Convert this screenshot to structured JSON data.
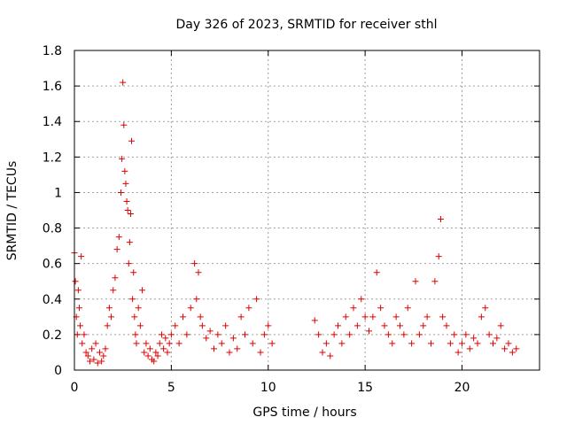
{
  "chart_data": {
    "type": "scatter",
    "title": "Day 326 of 2023, SRMTID for receiver sthl",
    "xlabel": "GPS time / hours",
    "ylabel": "SRMTID / TECUs",
    "xlim": [
      0,
      24
    ],
    "ylim": [
      0,
      1.8
    ],
    "xticks": [
      0,
      5,
      10,
      15,
      20
    ],
    "xtick_labels": [
      "0",
      "5",
      "10",
      "15",
      "20"
    ],
    "yticks": [
      0,
      0.2,
      0.4,
      0.6,
      0.8,
      1.0,
      1.2,
      1.4,
      1.6,
      1.8
    ],
    "ytick_labels": [
      "0",
      "0.2",
      "0.4",
      "0.6",
      "0.8",
      "1",
      "1.2",
      "1.4",
      "1.6",
      "1.8"
    ],
    "grid": true,
    "marker": "+",
    "color": "#e00000",
    "series": [
      {
        "name": "SRMTID",
        "x": [
          0.0,
          0.05,
          0.1,
          0.15,
          0.2,
          0.25,
          0.3,
          0.35,
          0.4,
          0.5,
          0.6,
          0.7,
          0.8,
          0.9,
          1.0,
          1.1,
          1.2,
          1.3,
          1.4,
          1.5,
          1.6,
          1.7,
          1.8,
          1.9,
          2.0,
          2.1,
          2.2,
          2.3,
          2.4,
          2.45,
          2.5,
          2.55,
          2.6,
          2.65,
          2.7,
          2.75,
          2.8,
          2.85,
          2.9,
          2.95,
          3.0,
          3.05,
          3.1,
          3.15,
          3.2,
          3.3,
          3.4,
          3.5,
          3.6,
          3.7,
          3.8,
          3.9,
          4.0,
          4.1,
          4.2,
          4.3,
          4.4,
          4.5,
          4.6,
          4.7,
          4.8,
          4.9,
          5.0,
          5.2,
          5.4,
          5.6,
          5.8,
          6.0,
          6.2,
          6.3,
          6.4,
          6.5,
          6.6,
          6.8,
          7.0,
          7.2,
          7.4,
          7.6,
          7.8,
          8.0,
          8.2,
          8.4,
          8.6,
          8.8,
          9.0,
          9.2,
          9.4,
          9.6,
          9.8,
          10.0,
          10.2,
          12.4,
          12.6,
          12.8,
          13.0,
          13.2,
          13.4,
          13.6,
          13.8,
          14.0,
          14.2,
          14.4,
          14.6,
          14.8,
          15.0,
          15.2,
          15.4,
          15.6,
          15.8,
          16.0,
          16.2,
          16.4,
          16.6,
          16.8,
          17.0,
          17.2,
          17.4,
          17.6,
          17.8,
          18.0,
          18.2,
          18.4,
          18.6,
          18.8,
          18.9,
          19.0,
          19.2,
          19.4,
          19.6,
          19.8,
          20.0,
          20.2,
          20.4,
          20.6,
          20.8,
          21.0,
          21.2,
          21.4,
          21.6,
          21.8,
          22.0,
          22.2,
          22.4,
          22.6,
          22.8
        ],
        "y": [
          0.66,
          0.5,
          0.3,
          0.2,
          0.45,
          0.35,
          0.25,
          0.64,
          0.15,
          0.2,
          0.1,
          0.08,
          0.05,
          0.12,
          0.06,
          0.15,
          0.04,
          0.1,
          0.05,
          0.08,
          0.12,
          0.25,
          0.35,
          0.3,
          0.45,
          0.52,
          0.68,
          0.75,
          1.0,
          1.19,
          1.62,
          1.38,
          1.12,
          1.05,
          0.95,
          0.9,
          0.6,
          0.72,
          0.88,
          1.29,
          0.4,
          0.55,
          0.3,
          0.2,
          0.15,
          0.35,
          0.25,
          0.45,
          0.1,
          0.15,
          0.08,
          0.12,
          0.06,
          0.05,
          0.1,
          0.08,
          0.15,
          0.2,
          0.12,
          0.18,
          0.1,
          0.15,
          0.2,
          0.25,
          0.15,
          0.3,
          0.2,
          0.35,
          0.6,
          0.4,
          0.55,
          0.3,
          0.25,
          0.18,
          0.22,
          0.12,
          0.2,
          0.15,
          0.25,
          0.1,
          0.18,
          0.12,
          0.3,
          0.2,
          0.35,
          0.15,
          0.4,
          0.1,
          0.2,
          0.25,
          0.15,
          0.28,
          0.2,
          0.1,
          0.15,
          0.08,
          0.2,
          0.25,
          0.15,
          0.3,
          0.2,
          0.35,
          0.25,
          0.4,
          0.3,
          0.22,
          0.3,
          0.55,
          0.35,
          0.25,
          0.2,
          0.15,
          0.3,
          0.25,
          0.2,
          0.35,
          0.15,
          0.5,
          0.2,
          0.25,
          0.3,
          0.15,
          0.5,
          0.64,
          0.85,
          0.3,
          0.25,
          0.15,
          0.2,
          0.1,
          0.15,
          0.2,
          0.12,
          0.18,
          0.15,
          0.3,
          0.35,
          0.2,
          0.15,
          0.18,
          0.25,
          0.12,
          0.15,
          0.1,
          0.12
        ]
      }
    ]
  }
}
